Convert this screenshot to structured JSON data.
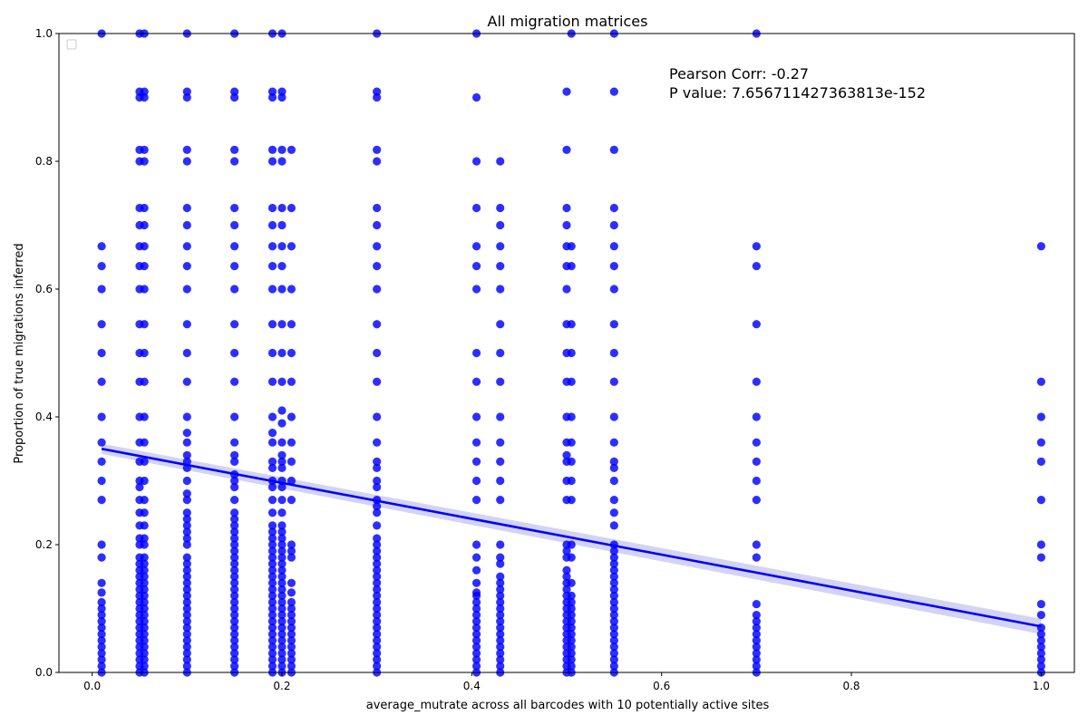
{
  "chart_data": {
    "type": "scatter",
    "title": "All migration matrices",
    "xlabel": "average_mutrate across all barcodes with 10 potentially active sites",
    "ylabel": "Proportion of true migrations inferred",
    "xlim": [
      -0.035,
      1.035
    ],
    "ylim": [
      0.0,
      1.0
    ],
    "xticks": [
      "0.0",
      "0.2",
      "0.4",
      "0.6",
      "0.8",
      "1.0"
    ],
    "xtick_values": [
      0.0,
      0.2,
      0.4,
      0.6,
      0.8,
      1.0
    ],
    "yticks": [
      "0.0",
      "0.2",
      "0.4",
      "0.6",
      "0.8",
      "1.0"
    ],
    "ytick_values": [
      0.0,
      0.2,
      0.4,
      0.6,
      0.8,
      1.0
    ],
    "grid": false,
    "legend": "top-left (empty)",
    "point_color": "#0000ff",
    "annotations": {
      "pearson": "Pearson Corr: -0.27",
      "pvalue": "P value: 7.656711427363813e-152"
    },
    "regression": {
      "x": [
        0.01,
        1.0
      ],
      "y": [
        0.35,
        0.072
      ],
      "ci_halfwidth": [
        0.008,
        0.012
      ],
      "ci_color": "#c8c8f0"
    },
    "series": [
      {
        "x": 0.01,
        "y": [
          0,
          0.01,
          0.02,
          0.03,
          0.04,
          0.05,
          0.06,
          0.07,
          0.08,
          0.09,
          0.1,
          0.11,
          0.125,
          0.14,
          0.18,
          0.2,
          0.27,
          0.3,
          0.33,
          0.36,
          0.4,
          0.455,
          0.5,
          0.545,
          0.6,
          0.636,
          0.667,
          1.0
        ]
      },
      {
        "x": 0.05,
        "y": [
          0,
          0.01,
          0.02,
          0.03,
          0.04,
          0.05,
          0.06,
          0.07,
          0.08,
          0.09,
          0.1,
          0.11,
          0.12,
          0.13,
          0.14,
          0.15,
          0.16,
          0.17,
          0.18,
          0.2,
          0.21,
          0.23,
          0.25,
          0.27,
          0.29,
          0.3,
          0.33,
          0.36,
          0.4,
          0.455,
          0.5,
          0.545,
          0.6,
          0.636,
          0.667,
          0.7,
          0.727,
          0.8,
          0.818,
          0.9,
          0.909,
          1.0
        ]
      },
      {
        "x": 0.055,
        "y": [
          0,
          0.01,
          0.02,
          0.03,
          0.04,
          0.05,
          0.06,
          0.07,
          0.08,
          0.09,
          0.1,
          0.11,
          0.12,
          0.13,
          0.14,
          0.15,
          0.16,
          0.17,
          0.18,
          0.2,
          0.21,
          0.23,
          0.25,
          0.27,
          0.3,
          0.33,
          0.36,
          0.4,
          0.455,
          0.5,
          0.545,
          0.6,
          0.636,
          0.667,
          0.7,
          0.727,
          0.8,
          0.818,
          0.9,
          0.909,
          1.0
        ]
      },
      {
        "x": 0.1,
        "y": [
          0,
          0.01,
          0.02,
          0.03,
          0.04,
          0.05,
          0.06,
          0.07,
          0.08,
          0.09,
          0.1,
          0.11,
          0.12,
          0.13,
          0.14,
          0.15,
          0.16,
          0.17,
          0.18,
          0.2,
          0.21,
          0.22,
          0.23,
          0.24,
          0.25,
          0.27,
          0.28,
          0.3,
          0.32,
          0.33,
          0.34,
          0.36,
          0.375,
          0.4,
          0.455,
          0.5,
          0.545,
          0.6,
          0.636,
          0.667,
          0.7,
          0.727,
          0.8,
          0.818,
          0.9,
          0.909,
          1.0
        ]
      },
      {
        "x": 0.15,
        "y": [
          0,
          0.01,
          0.02,
          0.03,
          0.04,
          0.05,
          0.06,
          0.07,
          0.08,
          0.09,
          0.1,
          0.11,
          0.12,
          0.13,
          0.14,
          0.15,
          0.16,
          0.17,
          0.18,
          0.19,
          0.2,
          0.21,
          0.22,
          0.23,
          0.24,
          0.25,
          0.27,
          0.29,
          0.3,
          0.31,
          0.33,
          0.34,
          0.36,
          0.4,
          0.455,
          0.5,
          0.545,
          0.6,
          0.636,
          0.667,
          0.7,
          0.727,
          0.8,
          0.818,
          0.9,
          0.909,
          1.0
        ]
      },
      {
        "x": 0.19,
        "y": [
          0,
          0.01,
          0.02,
          0.03,
          0.04,
          0.05,
          0.06,
          0.07,
          0.08,
          0.09,
          0.1,
          0.11,
          0.12,
          0.13,
          0.14,
          0.15,
          0.16,
          0.17,
          0.18,
          0.19,
          0.2,
          0.21,
          0.22,
          0.23,
          0.25,
          0.27,
          0.29,
          0.3,
          0.32,
          0.33,
          0.36,
          0.375,
          0.4,
          0.455,
          0.5,
          0.545,
          0.6,
          0.636,
          0.667,
          0.7,
          0.727,
          0.8,
          0.818,
          0.9,
          0.909,
          1.0
        ]
      },
      {
        "x": 0.2,
        "y": [
          0,
          0.01,
          0.02,
          0.03,
          0.04,
          0.05,
          0.06,
          0.07,
          0.08,
          0.09,
          0.1,
          0.11,
          0.12,
          0.13,
          0.14,
          0.15,
          0.16,
          0.17,
          0.18,
          0.19,
          0.2,
          0.21,
          0.22,
          0.23,
          0.25,
          0.27,
          0.29,
          0.3,
          0.32,
          0.33,
          0.34,
          0.36,
          0.39,
          0.41,
          0.455,
          0.5,
          0.545,
          0.6,
          0.636,
          0.667,
          0.7,
          0.727,
          0.8,
          0.818,
          0.9,
          0.909,
          1.0
        ]
      },
      {
        "x": 0.21,
        "y": [
          0,
          0.01,
          0.02,
          0.03,
          0.04,
          0.05,
          0.06,
          0.07,
          0.08,
          0.09,
          0.1,
          0.11,
          0.125,
          0.14,
          0.18,
          0.19,
          0.2,
          0.27,
          0.3,
          0.33,
          0.36,
          0.4,
          0.455,
          0.5,
          0.545,
          0.6,
          0.667,
          0.727,
          0.818
        ]
      },
      {
        "x": 0.3,
        "y": [
          0,
          0.01,
          0.02,
          0.03,
          0.04,
          0.05,
          0.06,
          0.07,
          0.08,
          0.09,
          0.1,
          0.11,
          0.12,
          0.13,
          0.14,
          0.15,
          0.16,
          0.17,
          0.18,
          0.19,
          0.2,
          0.21,
          0.23,
          0.25,
          0.26,
          0.27,
          0.29,
          0.3,
          0.32,
          0.33,
          0.36,
          0.4,
          0.455,
          0.5,
          0.545,
          0.6,
          0.636,
          0.667,
          0.7,
          0.727,
          0.8,
          0.818,
          0.9,
          0.909,
          1.0
        ]
      },
      {
        "x": 0.405,
        "y": [
          0,
          0.01,
          0.02,
          0.03,
          0.04,
          0.05,
          0.06,
          0.07,
          0.08,
          0.09,
          0.1,
          0.11,
          0.12,
          0.125,
          0.14,
          0.16,
          0.18,
          0.2,
          0.27,
          0.3,
          0.33,
          0.36,
          0.4,
          0.455,
          0.5,
          0.6,
          0.636,
          0.667,
          0.727,
          0.8,
          0.9,
          1.0
        ]
      },
      {
        "x": 0.43,
        "y": [
          0,
          0.01,
          0.02,
          0.03,
          0.04,
          0.05,
          0.06,
          0.07,
          0.08,
          0.09,
          0.1,
          0.11,
          0.12,
          0.13,
          0.14,
          0.15,
          0.17,
          0.18,
          0.2,
          0.27,
          0.3,
          0.33,
          0.36,
          0.4,
          0.455,
          0.5,
          0.545,
          0.6,
          0.636,
          0.667,
          0.7,
          0.727,
          0.8
        ]
      },
      {
        "x": 0.5,
        "y": [
          0,
          0.01,
          0.02,
          0.03,
          0.04,
          0.05,
          0.06,
          0.07,
          0.08,
          0.09,
          0.1,
          0.11,
          0.12,
          0.13,
          0.14,
          0.15,
          0.16,
          0.18,
          0.19,
          0.2,
          0.27,
          0.3,
          0.33,
          0.34,
          0.36,
          0.4,
          0.455,
          0.5,
          0.545,
          0.6,
          0.636,
          0.667,
          0.7,
          0.727,
          0.818,
          0.909
        ]
      },
      {
        "x": 0.505,
        "y": [
          0,
          0.01,
          0.02,
          0.03,
          0.04,
          0.05,
          0.06,
          0.07,
          0.08,
          0.09,
          0.1,
          0.11,
          0.12,
          0.14,
          0.18,
          0.2,
          0.27,
          0.3,
          0.33,
          0.36,
          0.4,
          0.455,
          0.5,
          0.545,
          0.636,
          0.667,
          1.0
        ]
      },
      {
        "x": 0.55,
        "y": [
          0,
          0.01,
          0.02,
          0.03,
          0.04,
          0.05,
          0.06,
          0.07,
          0.08,
          0.09,
          0.1,
          0.11,
          0.12,
          0.13,
          0.14,
          0.15,
          0.16,
          0.17,
          0.18,
          0.19,
          0.2,
          0.23,
          0.25,
          0.27,
          0.3,
          0.32,
          0.33,
          0.36,
          0.4,
          0.455,
          0.5,
          0.545,
          0.6,
          0.636,
          0.667,
          0.7,
          0.727,
          0.818,
          0.909,
          1.0
        ]
      },
      {
        "x": 0.7,
        "y": [
          0,
          0.01,
          0.02,
          0.03,
          0.04,
          0.05,
          0.06,
          0.07,
          0.08,
          0.09,
          0.107,
          0.18,
          0.2,
          0.27,
          0.3,
          0.33,
          0.36,
          0.4,
          0.455,
          0.545,
          0.636,
          0.667,
          1.0
        ]
      },
      {
        "x": 1.0,
        "y": [
          0,
          0.01,
          0.02,
          0.03,
          0.04,
          0.05,
          0.06,
          0.07,
          0.09,
          0.107,
          0.18,
          0.2,
          0.27,
          0.33,
          0.36,
          0.4,
          0.455,
          0.667
        ]
      }
    ]
  }
}
